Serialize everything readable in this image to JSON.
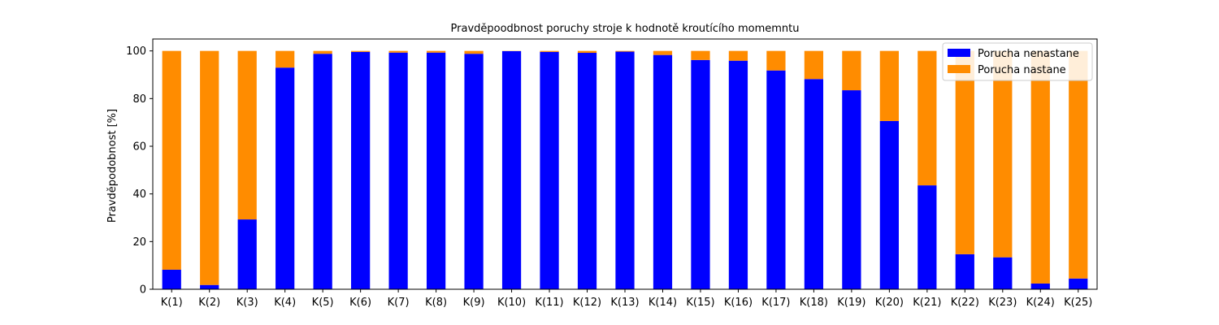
{
  "chart_data": {
    "type": "bar",
    "stacked": true,
    "title": "Pravděpoodbnost poruchy stroje k hodnotě kroutícího momemntu",
    "xlabel": "",
    "ylabel": "Pravděpodobnost [%]",
    "ylim": [
      0,
      105
    ],
    "yticks": [
      0,
      20,
      40,
      60,
      80,
      100
    ],
    "grid": false,
    "legend": "top-right",
    "categories": [
      "K(1)",
      "K(2)",
      "K(3)",
      "K(4)",
      "K(5)",
      "K(6)",
      "K(7)",
      "K(8)",
      "K(9)",
      "K(10)",
      "K(11)",
      "K(12)",
      "K(13)",
      "K(14)",
      "K(15)",
      "K(16)",
      "K(17)",
      "K(18)",
      "K(19)",
      "K(20)",
      "K(21)",
      "K(22)",
      "K(23)",
      "K(24)",
      "K(25)"
    ],
    "series": [
      {
        "name": "Porucha nenastane",
        "color": "#0000ff",
        "values": [
          8.2,
          1.8,
          29.3,
          93.0,
          98.8,
          99.6,
          99.3,
          99.3,
          98.8,
          99.9,
          99.6,
          99.2,
          99.7,
          98.3,
          96.2,
          95.9,
          91.8,
          88.2,
          83.5,
          70.6,
          43.6,
          14.7,
          13.4,
          2.4,
          4.5
        ]
      },
      {
        "name": "Porucha nastane",
        "color": "#ff8c00",
        "values": [
          91.8,
          98.2,
          70.7,
          7.0,
          1.2,
          0.4,
          0.7,
          0.7,
          1.2,
          0.1,
          0.4,
          0.8,
          0.3,
          1.7,
          3.8,
          4.1,
          8.2,
          11.8,
          16.5,
          29.4,
          56.4,
          85.3,
          86.6,
          97.6,
          95.5
        ]
      }
    ]
  }
}
